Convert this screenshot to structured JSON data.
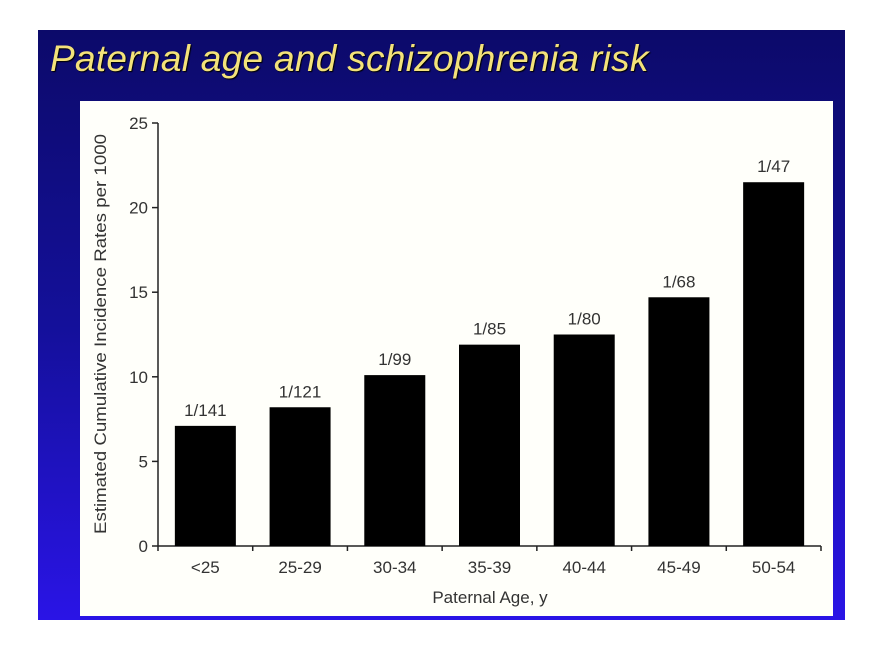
{
  "slide": {
    "title": "Paternal age and schizophrenia risk"
  },
  "colors": {
    "bar": "#000000",
    "title": "#f3e27a",
    "slide_bg": "#14109a"
  },
  "chart_data": {
    "type": "bar",
    "title": "Paternal age and schizophrenia risk",
    "xlabel": "Paternal Age, y",
    "ylabel": "Estimated Cumulative Incidence Rates per 1000",
    "categories": [
      "<25",
      "25-29",
      "30-34",
      "35-39",
      "40-44",
      "45-49",
      "50-54"
    ],
    "values": [
      7.1,
      8.2,
      10.1,
      11.9,
      12.5,
      14.7,
      21.5
    ],
    "data_labels": [
      "1/141",
      "1/121",
      "1/99",
      "1/85",
      "1/80",
      "1/68",
      "1/47"
    ],
    "ylim": [
      0,
      25
    ],
    "yticks": [
      0,
      5,
      10,
      15,
      20,
      25
    ],
    "grid": false,
    "legend": "none"
  }
}
